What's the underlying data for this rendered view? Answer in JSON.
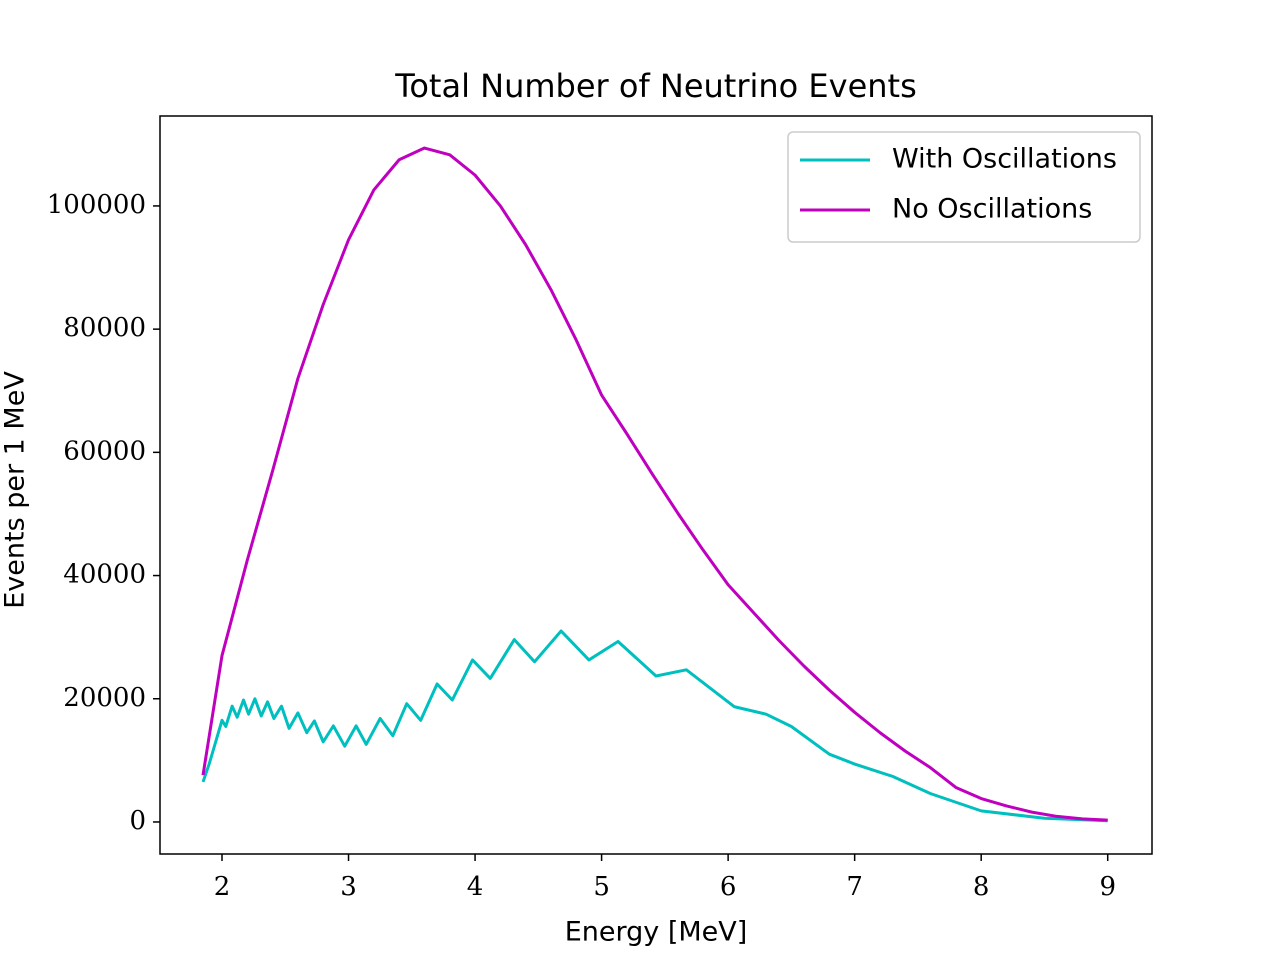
{
  "chart_data": {
    "type": "line",
    "title": "Total Number of Neutrino Events",
    "xlabel": "Energy [MeV]",
    "ylabel": "Events per 1 MeV",
    "xlim": [
      1.51,
      9.35
    ],
    "ylim": [
      -5200,
      114600
    ],
    "xticks": [
      2,
      3,
      4,
      5,
      6,
      7,
      8,
      9
    ],
    "yticks": [
      0,
      20000,
      40000,
      60000,
      80000,
      100000
    ],
    "grid": false,
    "legend": "upper right",
    "series": [
      {
        "name": "With Oscillations",
        "color": "#00bfbf",
        "x": [
          1.85,
          1.9,
          1.95,
          2.0,
          2.03,
          2.08,
          2.12,
          2.17,
          2.21,
          2.26,
          2.31,
          2.36,
          2.41,
          2.47,
          2.53,
          2.6,
          2.67,
          2.73,
          2.8,
          2.88,
          2.97,
          3.06,
          3.14,
          3.25,
          3.35,
          3.46,
          3.57,
          3.7,
          3.82,
          3.98,
          4.12,
          4.31,
          4.47,
          4.68,
          4.9,
          5.13,
          5.43,
          5.67,
          6.05,
          6.3,
          6.5,
          6.8,
          7.0,
          7.3,
          7.6,
          8.0,
          8.5,
          9.0
        ],
        "values": [
          6500,
          9500,
          13000,
          16500,
          15500,
          18800,
          17000,
          19800,
          17500,
          20000,
          17200,
          19500,
          16800,
          18800,
          15200,
          17700,
          14500,
          16400,
          13000,
          15600,
          12300,
          15600,
          12600,
          16800,
          14000,
          19200,
          16500,
          22400,
          19800,
          26300,
          23300,
          29600,
          26000,
          31000,
          26300,
          29300,
          23700,
          24700,
          18700,
          17500,
          15500,
          11000,
          9400,
          7400,
          4600,
          1800,
          600,
          200
        ]
      },
      {
        "name": "No Oscillations",
        "color": "#bf00bf",
        "x": [
          1.85,
          2.0,
          2.2,
          2.4,
          2.6,
          2.8,
          3.0,
          3.2,
          3.4,
          3.6,
          3.8,
          4.0,
          4.2,
          4.4,
          4.6,
          4.8,
          5.0,
          5.2,
          5.4,
          5.6,
          5.8,
          6.0,
          6.2,
          6.4,
          6.6,
          6.8,
          7.0,
          7.2,
          7.4,
          7.6,
          7.8,
          8.0,
          8.2,
          8.4,
          8.6,
          8.8,
          9.0
        ],
        "values": [
          7600,
          27000,
          42500,
          57000,
          72000,
          84000,
          94500,
          102600,
          107500,
          109400,
          108300,
          105000,
          100000,
          93700,
          86400,
          78200,
          69300,
          63000,
          56500,
          50200,
          44200,
          38500,
          34000,
          29500,
          25300,
          21400,
          17800,
          14500,
          11500,
          8800,
          5600,
          3800,
          2600,
          1600,
          900,
          500,
          300
        ]
      }
    ]
  }
}
